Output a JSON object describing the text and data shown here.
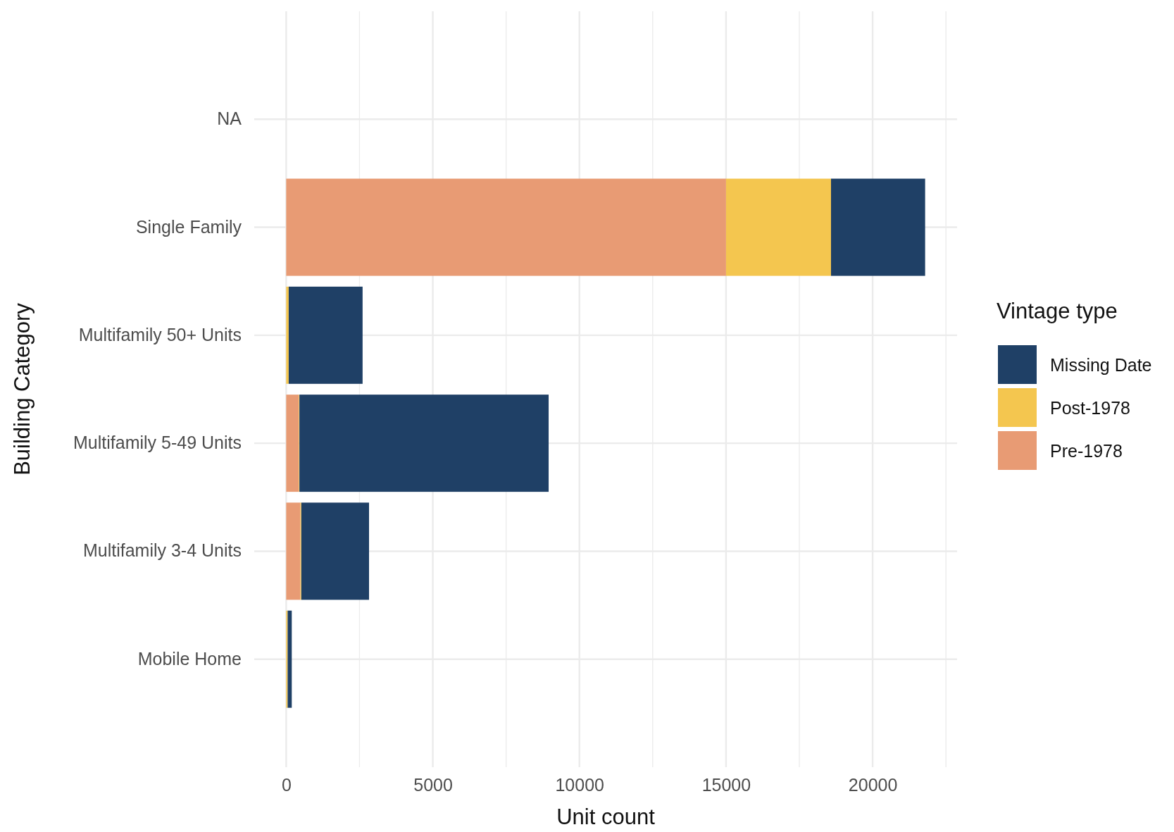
{
  "chart_data": {
    "type": "bar",
    "orientation": "horizontal",
    "stacked": true,
    "xlabel": "Unit count",
    "ylabel": "Building Category",
    "legend_title": "Vintage type",
    "categories": [
      "NA",
      "Single Family",
      "Multifamily 50+ Units",
      "Multifamily 5-49 Units",
      "Multifamily 3-4 Units",
      "Mobile Home"
    ],
    "series": [
      {
        "name": "Pre-1978",
        "color": "#e89b74",
        "values": [
          null,
          15000,
          0,
          430,
          485,
          0
        ]
      },
      {
        "name": "Post-1978",
        "color": "#f4c64f",
        "values": [
          null,
          3580,
          85,
          20,
          30,
          50
        ]
      },
      {
        "name": "Missing Date",
        "color": "#1f4066",
        "values": [
          null,
          3210,
          2520,
          8500,
          2310,
          140
        ]
      }
    ],
    "xlim": [
      -1090,
      22880
    ],
    "xticks": [
      0,
      {
        "value": 2500,
        "label": null
      },
      5000,
      {
        "value": 7500,
        "label": null
      },
      10000,
      {
        "value": 12500,
        "label": null
      },
      15000,
      {
        "value": 17500,
        "label": null
      },
      20000,
      {
        "value": 22500,
        "label": null
      }
    ],
    "grid": true,
    "legend": "right"
  }
}
